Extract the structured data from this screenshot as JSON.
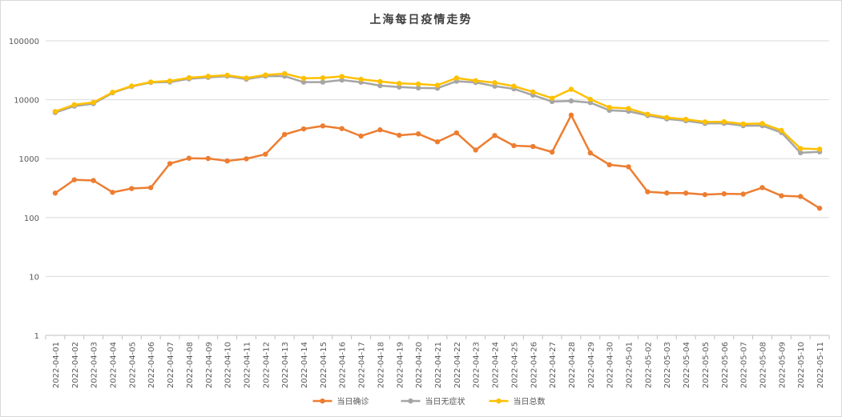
{
  "chart_data": {
    "type": "line",
    "title": "上海每日疫情走势",
    "yscale": "log",
    "ylim": [
      1,
      100000
    ],
    "yticks": [
      "1",
      "10",
      "100",
      "1000",
      "10000",
      "100000"
    ],
    "grid": true,
    "legend_position": "bottom",
    "x": [
      "2022-04-01",
      "2022-04-02",
      "2022-04-03",
      "2022-04-04",
      "2022-04-05",
      "2022-04-06",
      "2022-04-07",
      "2022-04-08",
      "2022-04-09",
      "2022-04-10",
      "2022-04-11",
      "2022-04-12",
      "2022-04-13",
      "2022-04-14",
      "2022-04-15",
      "2022-04-16",
      "2022-04-17",
      "2022-04-18",
      "2022-04-19",
      "2022-04-20",
      "2022-04-21",
      "2022-04-22",
      "2022-04-23",
      "2022-04-24",
      "2022-04-25",
      "2022-04-26",
      "2022-04-27",
      "2022-04-28",
      "2022-04-29",
      "2022-04-30",
      "2022-05-01",
      "2022-05-02",
      "2022-05-03",
      "2022-05-04",
      "2022-05-05",
      "2022-05-06",
      "2022-05-07",
      "2022-05-08",
      "2022-05-09",
      "2022-05-10",
      "2022-05-11"
    ],
    "series": [
      {
        "name": "当日确诊",
        "color": "#ed7d31",
        "values": [
          260,
          438,
          425,
          268,
          311,
          322,
          824,
          1015,
          1006,
          914,
          994,
          1189,
          2573,
          3200,
          3590,
          3238,
          2417,
          3084,
          2494,
          2634,
          1931,
          2736,
          1401,
          2472,
          1661,
          1606,
          1292,
          5487,
          1249,
          788,
          727,
          274,
          261,
          260,
          245,
          253,
          250,
          322,
          234,
          228,
          144
        ]
      },
      {
        "name": "当日无症状",
        "color": "#a5a5a5",
        "values": [
          6051,
          7788,
          8581,
          13086,
          16766,
          19660,
          19982,
          22609,
          23937,
          25173,
          22348,
          25141,
          25146,
          19872,
          19923,
          21582,
          19831,
          17332,
          16407,
          15861,
          15698,
          20634,
          19657,
          16983,
          15319,
          11956,
          9330,
          9545,
          8932,
          6606,
          6375,
          5395,
          4722,
          4390,
          3961,
          3975,
          3625,
          3625,
          2780,
          1259,
          1305
        ]
      },
      {
        "name": "当日总数",
        "color": "#ffc000",
        "values": [
          6311,
          8226,
          9006,
          13354,
          17077,
          19982,
          20806,
          23624,
          24943,
          26087,
          23342,
          26330,
          27719,
          23072,
          23513,
          24820,
          22248,
          20416,
          18901,
          18495,
          17629,
          23370,
          21058,
          19455,
          16980,
          13562,
          10622,
          15032,
          10181,
          7394,
          7102,
          5669,
          4983,
          4650,
          4206,
          4228,
          3875,
          3947,
          3014,
          1487,
          1449
        ]
      }
    ]
  }
}
